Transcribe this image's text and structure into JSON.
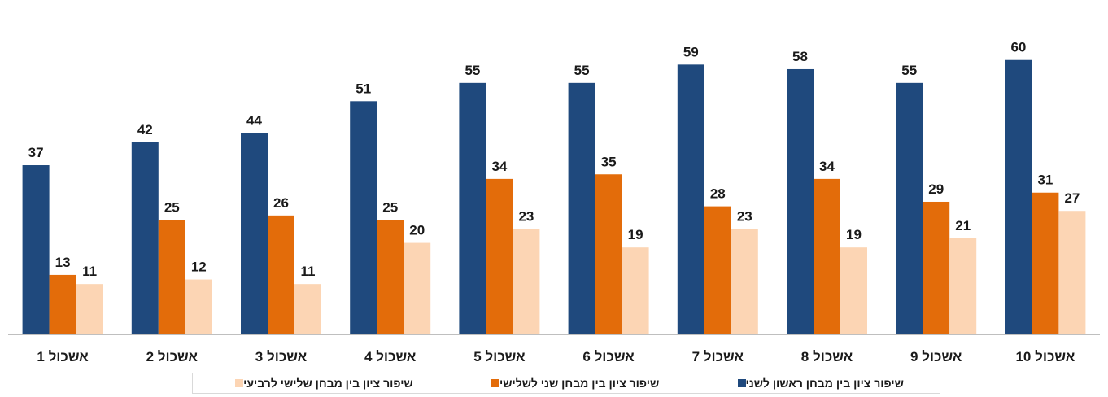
{
  "chart_data": {
    "type": "bar",
    "categories": [
      "אשכול 1",
      "אשכול 2",
      "אשכול 3",
      "אשכול 4",
      "אשכול 5",
      "אשכול 6",
      "אשכול 7",
      "אשכול 8",
      "אשכול 9",
      "אשכול 10"
    ],
    "series": [
      {
        "name": "שיפור ציון בין מבחן ראשון לשני",
        "color": "#1F497D",
        "values": [
          37,
          42,
          44,
          51,
          55,
          55,
          59,
          58,
          55,
          60
        ]
      },
      {
        "name": "שיפור ציון בין מבחן שני לשלישי",
        "color": "#E36C0A",
        "values": [
          13,
          25,
          26,
          25,
          34,
          35,
          28,
          34,
          29,
          31
        ]
      },
      {
        "name": "שיפור ציון בין מבחן שלישי לרביעי",
        "color": "#FCD5B4",
        "values": [
          11,
          12,
          11,
          20,
          23,
          19,
          23,
          19,
          21,
          27
        ]
      }
    ],
    "ylim": [
      0,
      66
    ],
    "grid": false,
    "legend_position": "bottom",
    "data_labels": true
  }
}
